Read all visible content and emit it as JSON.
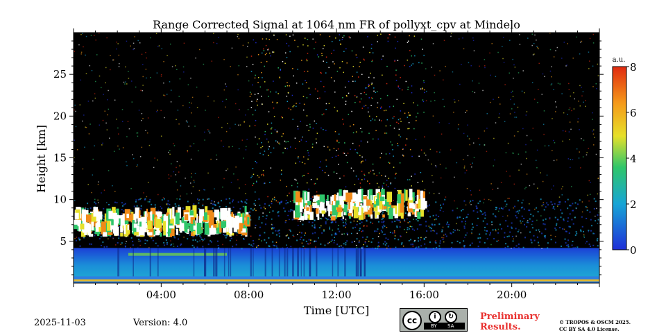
{
  "chart_data": {
    "type": "heatmap",
    "title": "Range Corrected Signal at 1064 nm FR of pollyxt_cpv at Mindelo",
    "xlabel": "Time [UTC]",
    "ylabel": "Height [km]",
    "xlim": [
      0,
      24
    ],
    "ylim": [
      0,
      30
    ],
    "x_ticks": [
      {
        "value": 4,
        "label": "04:00"
      },
      {
        "value": 8,
        "label": "08:00"
      },
      {
        "value": 12,
        "label": "12:00"
      },
      {
        "value": 16,
        "label": "16:00"
      },
      {
        "value": 20,
        "label": "20:00"
      }
    ],
    "y_ticks": [
      {
        "value": 5,
        "label": "5"
      },
      {
        "value": 10,
        "label": "10"
      },
      {
        "value": 15,
        "label": "15"
      },
      {
        "value": 20,
        "label": "20"
      },
      {
        "value": 25,
        "label": "25"
      }
    ],
    "colorbar": {
      "unit": "a.u.",
      "min": 0,
      "max": 8,
      "ticks": [
        {
          "value": 0,
          "label": "0"
        },
        {
          "value": 2,
          "label": "2"
        },
        {
          "value": 4,
          "label": "4"
        },
        {
          "value": 6,
          "label": "6"
        },
        {
          "value": 8,
          "label": "8"
        }
      ],
      "colors": [
        "#1f2fd8",
        "#17a5d6",
        "#2fc66a",
        "#e6e02a",
        "#f59a1a",
        "#e02a10"
      ]
    },
    "features": {
      "boundary_layer_top_km": 4.2,
      "surface_layer_km": [
        0,
        0.8
      ],
      "cloud_layer_1": {
        "time_h": [
          0,
          8
        ],
        "height_km": [
          5.5,
          10
        ]
      },
      "cloud_layer_2": {
        "time_h": [
          10,
          16
        ],
        "height_km": [
          7.5,
          12
        ]
      },
      "noisy_period_h": [
        8,
        16
      ]
    }
  },
  "footer": {
    "date": "2025-11-03",
    "version": "Version: 4.0",
    "license_badge": {
      "cc": "cc",
      "by": "BY",
      "sa": "SA"
    },
    "preliminary_line1": "Preliminary",
    "preliminary_line2": "Results.",
    "copyright_line1": "© TROPOS & OSCM 2025.",
    "copyright_line2": "CC BY SA 4.0 License."
  }
}
